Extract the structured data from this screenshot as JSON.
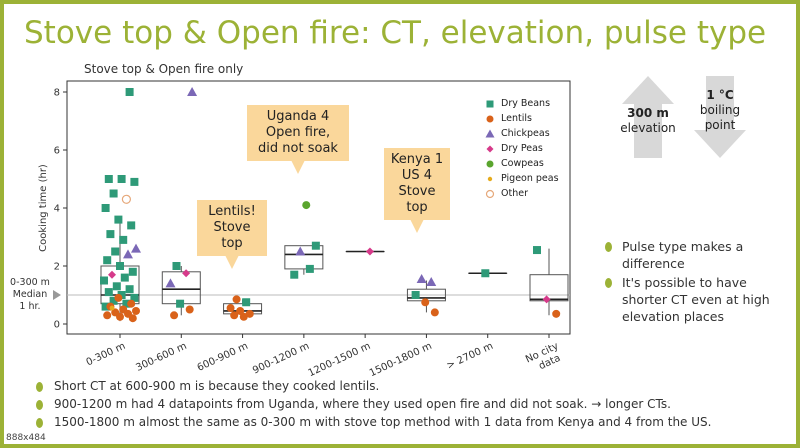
{
  "slide": {
    "title": "Stove top & Open fire: CT, elevation, pulse type",
    "subtitle": "Stove top & Open fire only",
    "median_label": [
      "0-300 m",
      "Median",
      "1 hr."
    ],
    "footnote": "888x484"
  },
  "callouts": {
    "uganda": [
      "Uganda 4",
      "Open fire,",
      "did not soak"
    ],
    "lentils": [
      "Lentils!",
      "Stove top"
    ],
    "kenya": [
      "Kenya 1",
      "US 4",
      "Stove top"
    ]
  },
  "arrows": {
    "elevation": {
      "value": "300 m",
      "label": "elevation"
    },
    "boiling": {
      "value": "1 °C",
      "label1": "boiling",
      "label2": "point"
    }
  },
  "side_bullets": [
    "Pulse type makes a difference",
    "It's possible to have shorter CT even at high elevation places"
  ],
  "bottom_bullets": [
    "Short CT at 600-900 m is because they cooked lentils.",
    "900-1200 m had 4 datapoints from Uganda, where they used open fire and did not soak. → longer CTs.",
    "1500-1800 m almost the same as 0-300 m with stove top method with 1 data from Kenya and 4 from the US."
  ],
  "colors": {
    "accent": "#9cb236",
    "callout": "#fad79b",
    "dry_beans": "#2e9a78",
    "lentils": "#d9621a",
    "chickpeas": "#7b68b6",
    "dry_peas": "#d63a8a",
    "cowpeas": "#5aa52e",
    "pigeon_peas": "#e6ab1c",
    "other": "#e6a87a"
  },
  "chart_data": {
    "type": "scatter",
    "subtitle": "Stove top & Open fire only",
    "ylabel": "Cooking time (hr)",
    "xlabel": "",
    "categories": [
      "0-300 m",
      "300-600 m",
      "600-900 m",
      "900-1200 m",
      "1200-1500 m",
      "1500-1800 m",
      "> 2700 m",
      "No city data"
    ],
    "ylim": [
      0,
      8
    ],
    "yticks": [
      0,
      2,
      4,
      6,
      8
    ],
    "legend_position": "top-right",
    "legend": [
      {
        "name": "Dry Beans",
        "shape": "square",
        "color": "#2e9a78"
      },
      {
        "name": "Lentils",
        "shape": "circle",
        "color": "#d9621a"
      },
      {
        "name": "Chickpeas",
        "shape": "triangle",
        "color": "#7b68b6"
      },
      {
        "name": "Dry Peas",
        "shape": "diamond",
        "color": "#d63a8a"
      },
      {
        "name": "Cowpeas",
        "shape": "circle",
        "color": "#5aa52e"
      },
      {
        "name": "Pigeon peas",
        "shape": "smallcircle",
        "color": "#e6ab1c"
      },
      {
        "name": "Other",
        "shape": "opencircle",
        "color": "#e6a87a"
      }
    ],
    "boxes": [
      {
        "category": "0-300 m",
        "q1": 0.7,
        "median": 1.0,
        "q3": 2.0,
        "whisker_low": 0.1,
        "whisker_high": 3.6
      },
      {
        "category": "300-600 m",
        "q1": 0.7,
        "median": 1.2,
        "q3": 1.8,
        "whisker_low": 0.3,
        "whisker_high": 2.0
      },
      {
        "category": "600-900 m",
        "q1": 0.35,
        "median": 0.45,
        "q3": 0.7,
        "whisker_low": 0.2,
        "whisker_high": 0.85
      },
      {
        "category": "900-1200 m",
        "q1": 1.9,
        "median": 2.4,
        "q3": 2.7,
        "whisker_low": 1.7,
        "whisker_high": 2.7
      },
      {
        "category": "1200-1500 m",
        "q1": 2.5,
        "median": 2.5,
        "q3": 2.5,
        "whisker_low": 2.5,
        "whisker_high": 2.5
      },
      {
        "category": "1500-1800 m",
        "q1": 0.8,
        "median": 0.9,
        "q3": 1.2,
        "whisker_low": 0.4,
        "whisker_high": 1.5
      },
      {
        "category": "> 2700 m",
        "q1": 1.75,
        "median": 1.75,
        "q3": 1.75,
        "whisker_low": 1.75,
        "whisker_high": 1.75
      },
      {
        "category": "No city data",
        "q1": 0.8,
        "median": 0.85,
        "q3": 1.7,
        "whisker_low": 0.3,
        "whisker_high": 2.6
      }
    ],
    "points": [
      {
        "category": "0-300 m",
        "pulse": "Dry Beans",
        "y": 8.0
      },
      {
        "category": "0-300 m",
        "pulse": "Dry Beans",
        "y": 5.0
      },
      {
        "category": "0-300 m",
        "pulse": "Dry Beans",
        "y": 5.0
      },
      {
        "category": "0-300 m",
        "pulse": "Dry Beans",
        "y": 4.9
      },
      {
        "category": "0-300 m",
        "pulse": "Dry Beans",
        "y": 4.5
      },
      {
        "category": "0-300 m",
        "pulse": "Other",
        "y": 4.3
      },
      {
        "category": "0-300 m",
        "pulse": "Dry Beans",
        "y": 4.0
      },
      {
        "category": "0-300 m",
        "pulse": "Dry Beans",
        "y": 3.6
      },
      {
        "category": "0-300 m",
        "pulse": "Dry Beans",
        "y": 3.4
      },
      {
        "category": "0-300 m",
        "pulse": "Dry Beans",
        "y": 3.1
      },
      {
        "category": "0-300 m",
        "pulse": "Dry Beans",
        "y": 2.9
      },
      {
        "category": "0-300 m",
        "pulse": "Chickpeas",
        "y": 2.6
      },
      {
        "category": "0-300 m",
        "pulse": "Dry Beans",
        "y": 2.5
      },
      {
        "category": "0-300 m",
        "pulse": "Chickpeas",
        "y": 2.4
      },
      {
        "category": "0-300 m",
        "pulse": "Dry Beans",
        "y": 2.2
      },
      {
        "category": "0-300 m",
        "pulse": "Dry Beans",
        "y": 2.0
      },
      {
        "category": "0-300 m",
        "pulse": "Dry Beans",
        "y": 1.8
      },
      {
        "category": "0-300 m",
        "pulse": "Dry Peas",
        "y": 1.7
      },
      {
        "category": "0-300 m",
        "pulse": "Dry Beans",
        "y": 1.6
      },
      {
        "category": "0-300 m",
        "pulse": "Dry Beans",
        "y": 1.5
      },
      {
        "category": "0-300 m",
        "pulse": "Dry Beans",
        "y": 1.3
      },
      {
        "category": "0-300 m",
        "pulse": "Dry Beans",
        "y": 1.2
      },
      {
        "category": "0-300 m",
        "pulse": "Dry Beans",
        "y": 1.1
      },
      {
        "category": "0-300 m",
        "pulse": "Dry Beans",
        "y": 1.0
      },
      {
        "category": "0-300 m",
        "pulse": "Dry Beans",
        "y": 0.9
      },
      {
        "category": "0-300 m",
        "pulse": "Dry Beans",
        "y": 0.8
      },
      {
        "category": "0-300 m",
        "pulse": "Dry Beans",
        "y": 0.7
      },
      {
        "category": "0-300 m",
        "pulse": "Dry Beans",
        "y": 0.6
      },
      {
        "category": "0-300 m",
        "pulse": "Lentils",
        "y": 0.9
      },
      {
        "category": "0-300 m",
        "pulse": "Lentils",
        "y": 0.7
      },
      {
        "category": "0-300 m",
        "pulse": "Lentils",
        "y": 0.6
      },
      {
        "category": "0-300 m",
        "pulse": "Lentils",
        "y": 0.5
      },
      {
        "category": "0-300 m",
        "pulse": "Lentils",
        "y": 0.45
      },
      {
        "category": "0-300 m",
        "pulse": "Lentils",
        "y": 0.4
      },
      {
        "category": "0-300 m",
        "pulse": "Lentils",
        "y": 0.35
      },
      {
        "category": "0-300 m",
        "pulse": "Lentils",
        "y": 0.3
      },
      {
        "category": "0-300 m",
        "pulse": "Lentils",
        "y": 0.25
      },
      {
        "category": "0-300 m",
        "pulse": "Lentils",
        "y": 0.2
      },
      {
        "category": "0-300 m",
        "pulse": "Pigeon peas",
        "y": 0.55
      },
      {
        "category": "300-600 m",
        "pulse": "Chickpeas",
        "y": 8.0
      },
      {
        "category": "300-600 m",
        "pulse": "Dry Beans",
        "y": 2.0
      },
      {
        "category": "300-600 m",
        "pulse": "Dry Peas",
        "y": 1.75
      },
      {
        "category": "300-600 m",
        "pulse": "Chickpeas",
        "y": 1.4
      },
      {
        "category": "300-600 m",
        "pulse": "Dry Beans",
        "y": 0.7
      },
      {
        "category": "300-600 m",
        "pulse": "Lentils",
        "y": 0.5
      },
      {
        "category": "300-600 m",
        "pulse": "Lentils",
        "y": 0.3
      },
      {
        "category": "600-900 m",
        "pulse": "Lentils",
        "y": 0.85
      },
      {
        "category": "600-900 m",
        "pulse": "Dry Beans",
        "y": 0.75
      },
      {
        "category": "600-900 m",
        "pulse": "Lentils",
        "y": 0.55
      },
      {
        "category": "600-900 m",
        "pulse": "Lentils",
        "y": 0.45
      },
      {
        "category": "600-900 m",
        "pulse": "Lentils",
        "y": 0.35
      },
      {
        "category": "600-900 m",
        "pulse": "Lentils",
        "y": 0.3
      },
      {
        "category": "600-900 m",
        "pulse": "Lentils",
        "y": 0.25
      },
      {
        "category": "900-1200 m",
        "pulse": "Cowpeas",
        "y": 4.1
      },
      {
        "category": "900-1200 m",
        "pulse": "Dry Beans",
        "y": 2.7
      },
      {
        "category": "900-1200 m",
        "pulse": "Chickpeas",
        "y": 2.5
      },
      {
        "category": "900-1200 m",
        "pulse": "Dry Beans",
        "y": 1.9
      },
      {
        "category": "900-1200 m",
        "pulse": "Dry Beans",
        "y": 1.7
      },
      {
        "category": "1200-1500 m",
        "pulse": "Dry Peas",
        "y": 2.5
      },
      {
        "category": "1500-1800 m",
        "pulse": "Chickpeas",
        "y": 1.55
      },
      {
        "category": "1500-1800 m",
        "pulse": "Chickpeas",
        "y": 1.45
      },
      {
        "category": "1500-1800 m",
        "pulse": "Dry Beans",
        "y": 1.0
      },
      {
        "category": "1500-1800 m",
        "pulse": "Lentils",
        "y": 0.75
      },
      {
        "category": "1500-1800 m",
        "pulse": "Lentils",
        "y": 0.4
      },
      {
        "category": "> 2700 m",
        "pulse": "Dry Beans",
        "y": 1.75
      },
      {
        "category": "No city data",
        "pulse": "Dry Beans",
        "y": 2.55
      },
      {
        "category": "No city data",
        "pulse": "Dry Peas",
        "y": 0.85
      },
      {
        "category": "No city data",
        "pulse": "Lentils",
        "y": 0.35
      }
    ]
  }
}
